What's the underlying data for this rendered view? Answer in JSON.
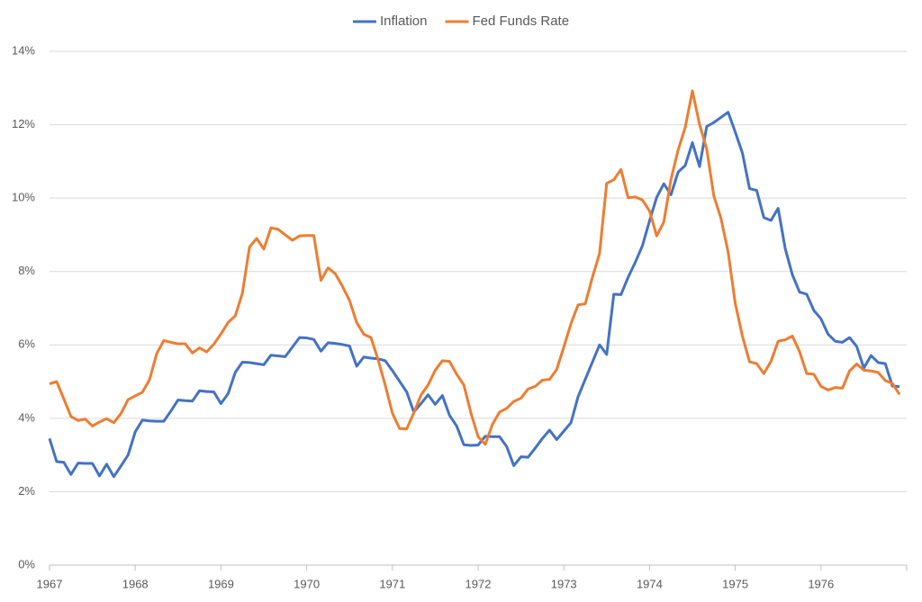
{
  "chart_data": {
    "type": "line",
    "categories": [
      "1967",
      null,
      null,
      null,
      null,
      null,
      null,
      null,
      null,
      null,
      null,
      null,
      "1968",
      null,
      null,
      null,
      null,
      null,
      null,
      null,
      null,
      null,
      null,
      null,
      "1969",
      null,
      null,
      null,
      null,
      null,
      null,
      null,
      null,
      null,
      null,
      null,
      "1970",
      null,
      null,
      null,
      null,
      null,
      null,
      null,
      null,
      null,
      null,
      null,
      "1971",
      null,
      null,
      null,
      null,
      null,
      null,
      null,
      null,
      null,
      null,
      null,
      "1972",
      null,
      null,
      null,
      null,
      null,
      null,
      null,
      null,
      null,
      null,
      null,
      "1973",
      null,
      null,
      null,
      null,
      null,
      null,
      null,
      null,
      null,
      null,
      null,
      "1974",
      null,
      null,
      null,
      null,
      null,
      null,
      null,
      null,
      null,
      null,
      null,
      "1975",
      null,
      null,
      null,
      null,
      null,
      null,
      null,
      null,
      null,
      null,
      null,
      "1976",
      null,
      null,
      null,
      null,
      null,
      null,
      null,
      null,
      null,
      null,
      null
    ],
    "series": [
      {
        "name": "Inflation",
        "color": "#4472c4",
        "values": [
          3.45,
          2.82,
          2.8,
          2.47,
          2.78,
          2.77,
          2.77,
          2.43,
          2.75,
          2.41,
          2.7,
          3.0,
          3.63,
          3.95,
          3.93,
          3.92,
          3.92,
          4.2,
          4.5,
          4.48,
          4.47,
          4.75,
          4.73,
          4.72,
          4.4,
          4.67,
          5.25,
          5.53,
          5.52,
          5.49,
          5.46,
          5.72,
          5.7,
          5.68,
          5.94,
          6.2,
          6.19,
          6.15,
          5.83,
          6.06,
          6.04,
          6.01,
          5.97,
          5.42,
          5.67,
          5.64,
          5.62,
          5.57,
          5.3,
          5.01,
          4.72,
          4.17,
          4.4,
          4.64,
          4.38,
          4.62,
          4.08,
          3.79,
          3.28,
          3.26,
          3.27,
          3.51,
          3.5,
          3.5,
          3.23,
          2.71,
          2.95,
          2.94,
          3.19,
          3.45,
          3.68,
          3.42,
          3.65,
          3.88,
          4.59,
          5.06,
          5.53,
          6.0,
          5.74,
          7.38,
          7.37,
          7.84,
          8.25,
          8.7,
          9.38,
          10.02,
          10.39,
          10.09,
          10.71,
          10.89,
          11.51,
          10.86,
          11.95,
          12.06,
          12.2,
          12.34,
          11.8,
          11.23,
          10.26,
          10.21,
          9.47,
          9.39,
          9.72,
          8.62,
          7.91,
          7.44,
          7.38,
          6.94,
          6.71,
          6.29,
          6.1,
          6.07,
          6.2,
          5.96,
          5.37,
          5.71,
          5.52,
          5.49,
          4.88,
          4.86
        ]
      },
      {
        "name": "Fed Funds Rate",
        "color": "#ed7d31",
        "values": [
          4.94,
          5.0,
          4.53,
          4.05,
          3.94,
          3.98,
          3.79,
          3.9,
          3.99,
          3.88,
          4.13,
          4.51,
          4.61,
          4.71,
          5.05,
          5.76,
          6.12,
          6.07,
          6.03,
          6.03,
          5.78,
          5.92,
          5.81,
          6.02,
          6.3,
          6.61,
          6.79,
          7.41,
          8.67,
          8.9,
          8.61,
          9.19,
          9.15,
          9.0,
          8.85,
          8.97,
          8.98,
          8.98,
          7.76,
          8.1,
          7.94,
          7.6,
          7.21,
          6.61,
          6.29,
          6.2,
          5.6,
          4.9,
          4.14,
          3.72,
          3.71,
          4.15,
          4.63,
          4.91,
          5.31,
          5.57,
          5.55,
          5.2,
          4.91,
          4.14,
          3.5,
          3.29,
          3.83,
          4.17,
          4.27,
          4.46,
          4.55,
          4.8,
          4.87,
          5.04,
          5.06,
          5.33,
          5.94,
          6.58,
          7.09,
          7.12,
          7.84,
          8.49,
          10.4,
          10.5,
          10.78,
          10.01,
          10.03,
          9.95,
          9.65,
          8.97,
          9.35,
          10.51,
          11.31,
          11.93,
          12.92,
          12.01,
          11.34,
          10.06,
          9.45,
          8.53,
          7.13,
          6.24,
          5.54,
          5.49,
          5.22,
          5.55,
          6.1,
          6.14,
          6.24,
          5.82,
          5.22,
          5.2,
          4.87,
          4.77,
          4.84,
          4.82,
          5.29,
          5.48,
          5.31,
          5.29,
          5.25,
          5.03,
          4.95,
          4.65
        ]
      }
    ],
    "ylim": [
      0,
      14
    ],
    "yticks": [
      {
        "value": 0,
        "label": "0%"
      },
      {
        "value": 2,
        "label": "2%"
      },
      {
        "value": 4,
        "label": "4%"
      },
      {
        "value": 6,
        "label": "6%"
      },
      {
        "value": 8,
        "label": "8%"
      },
      {
        "value": 10,
        "label": "10%"
      },
      {
        "value": 12,
        "label": "12%"
      },
      {
        "value": 14,
        "label": "14%"
      }
    ],
    "grid": true,
    "legend": "top"
  }
}
